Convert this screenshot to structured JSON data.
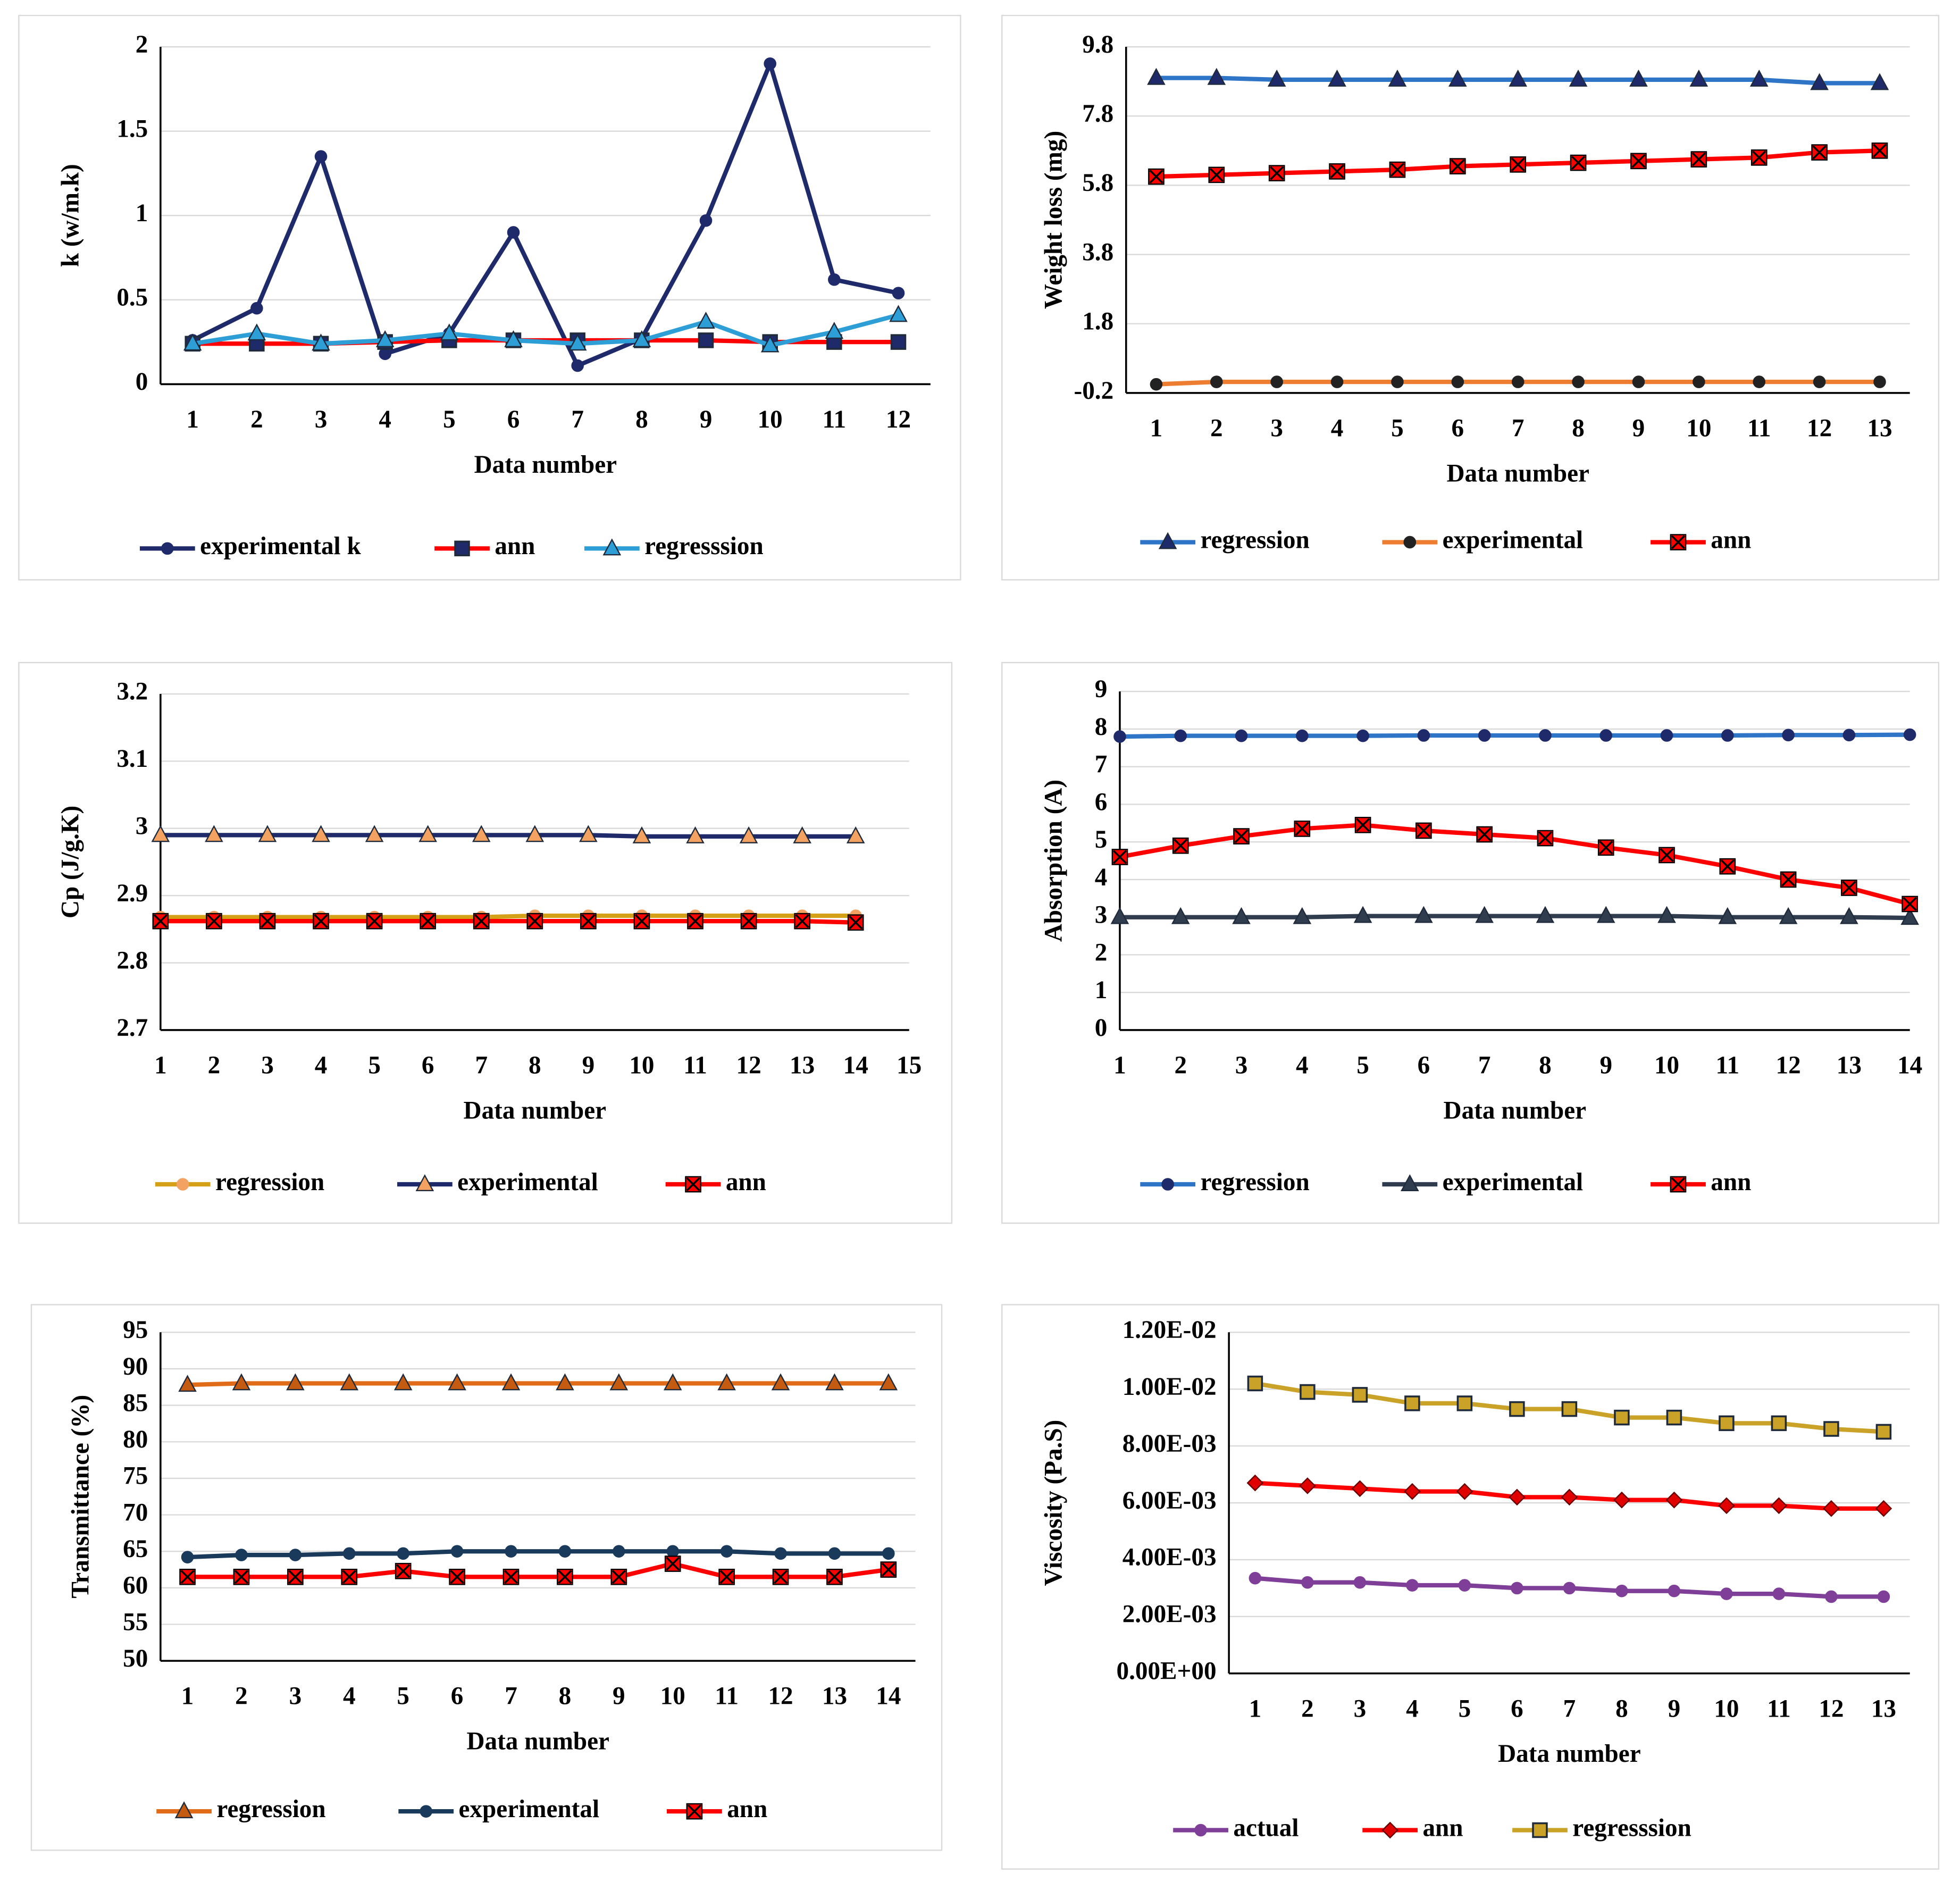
{
  "chart_data": [
    {
      "type": "line",
      "y_label": "k (w/m.k)",
      "x_label": "Data number",
      "categories": [
        "1",
        "2",
        "3",
        "4",
        "5",
        "6",
        "7",
        "8",
        "9",
        "10",
        "11",
        "12"
      ],
      "ylim": [
        0,
        2
      ],
      "yticks": [
        0,
        0.5,
        1,
        1.5,
        2
      ],
      "grid": true,
      "legend": "bottom",
      "series": [
        {
          "name": "experimental k",
          "color": "#1f2a6b",
          "marker": "circle",
          "marker_color": "#1f2a6b",
          "values": [
            0.26,
            0.45,
            1.35,
            0.18,
            0.3,
            0.9,
            0.11,
            0.27,
            0.97,
            1.9,
            0.62,
            0.54
          ]
        },
        {
          "name": "ann",
          "color": "#ff0000",
          "marker": "square",
          "marker_color": "#1f2a6b",
          "values": [
            0.24,
            0.24,
            0.24,
            0.25,
            0.26,
            0.26,
            0.26,
            0.26,
            0.26,
            0.25,
            0.25,
            0.25
          ]
        },
        {
          "name": "regresssion",
          "color": "#2e9fd6",
          "marker": "triangle",
          "marker_color": "#2e9fd6",
          "values": [
            0.24,
            0.3,
            0.24,
            0.26,
            0.3,
            0.26,
            0.24,
            0.26,
            0.37,
            0.23,
            0.31,
            0.41
          ]
        }
      ]
    },
    {
      "type": "line",
      "y_label": "Weight  loss (mg)",
      "x_label": "Data number",
      "categories": [
        "1",
        "2",
        "3",
        "4",
        "5",
        "6",
        "7",
        "8",
        "9",
        "10",
        "11",
        "12",
        "13"
      ],
      "ylim": [
        -0.2,
        9.8
      ],
      "yticks": [
        -0.2,
        1.8,
        3.8,
        5.8,
        7.8,
        9.8
      ],
      "grid": true,
      "legend": "bottom",
      "series": [
        {
          "name": "regression",
          "color": "#2e75c7",
          "marker": "triangle",
          "marker_color": "#1f2a6b",
          "values": [
            8.9,
            8.9,
            8.85,
            8.85,
            8.85,
            8.85,
            8.85,
            8.85,
            8.85,
            8.85,
            8.85,
            8.75,
            8.75
          ]
        },
        {
          "name": "experimental",
          "color": "#ed7d31",
          "marker": "circle",
          "marker_color": "#222222",
          "values": [
            0.05,
            0.12,
            0.12,
            0.12,
            0.12,
            0.12,
            0.12,
            0.12,
            0.12,
            0.12,
            0.12,
            0.12,
            0.12
          ]
        },
        {
          "name": "ann",
          "color": "#ff0000",
          "marker": "xsquare",
          "marker_color": "#ff0000",
          "values": [
            6.05,
            6.1,
            6.15,
            6.2,
            6.25,
            6.35,
            6.4,
            6.45,
            6.5,
            6.55,
            6.6,
            6.75,
            6.8
          ]
        }
      ]
    },
    {
      "type": "line",
      "y_label": "Cp (J/g.K)",
      "x_label": "Data number",
      "categories": [
        "1",
        "2",
        "3",
        "4",
        "5",
        "6",
        "7",
        "8",
        "9",
        "10",
        "11",
        "12",
        "13",
        "14",
        "15"
      ],
      "ylim": [
        2.7,
        3.2
      ],
      "yticks": [
        2.7,
        2.8,
        2.9,
        3,
        3.1,
        3.2
      ],
      "grid": true,
      "legend": "bottom",
      "series": [
        {
          "name": "regression",
          "color": "#d4a017",
          "marker": "circle",
          "marker_color": "#f4a261",
          "values": [
            2.868,
            2.868,
            2.868,
            2.868,
            2.868,
            2.868,
            2.868,
            2.87,
            2.87,
            2.87,
            2.87,
            2.87,
            2.87,
            2.87,
            null
          ]
        },
        {
          "name": "experimental",
          "color": "#1f2a6b",
          "marker": "triangle",
          "marker_color": "#f4a261",
          "values": [
            2.99,
            2.99,
            2.99,
            2.99,
            2.99,
            2.99,
            2.99,
            2.99,
            2.99,
            2.988,
            2.988,
            2.988,
            2.988,
            2.988,
            null
          ]
        },
        {
          "name": "ann",
          "color": "#ff0000",
          "marker": "xsquare",
          "marker_color": "#ff0000",
          "values": [
            2.862,
            2.862,
            2.862,
            2.862,
            2.862,
            2.862,
            2.862,
            2.862,
            2.862,
            2.862,
            2.862,
            2.862,
            2.862,
            2.86,
            null
          ]
        }
      ]
    },
    {
      "type": "line",
      "y_label": "Absorption  (A)",
      "x_label": "Data number",
      "categories": [
        "1",
        "2",
        "3",
        "4",
        "5",
        "6",
        "7",
        "8",
        "9",
        "10",
        "11",
        "12",
        "13",
        "14"
      ],
      "ylim": [
        0,
        9
      ],
      "yticks": [
        0,
        1,
        2,
        3,
        4,
        5,
        6,
        7,
        8,
        9
      ],
      "grid": true,
      "legend": "bottom",
      "series": [
        {
          "name": "regression",
          "color": "#2e75c7",
          "marker": "circle",
          "marker_color": "#1f2a6b",
          "values": [
            7.8,
            7.82,
            7.82,
            7.82,
            7.82,
            7.83,
            7.83,
            7.83,
            7.83,
            7.83,
            7.83,
            7.84,
            7.84,
            7.85
          ]
        },
        {
          "name": "experimental",
          "color": "#2f3d4f",
          "marker": "triangle",
          "marker_color": "#2f3d4f",
          "values": [
            3.0,
            3.0,
            3.0,
            3.0,
            3.03,
            3.03,
            3.03,
            3.03,
            3.03,
            3.03,
            3.0,
            3.0,
            3.0,
            2.98
          ]
        },
        {
          "name": "ann",
          "color": "#ff0000",
          "marker": "xsquare",
          "marker_color": "#ff0000",
          "values": [
            4.6,
            4.9,
            5.15,
            5.35,
            5.45,
            5.3,
            5.2,
            5.1,
            4.85,
            4.65,
            4.35,
            4.0,
            3.78,
            3.35
          ]
        }
      ]
    },
    {
      "type": "line",
      "y_label": "Transmittance  (%)",
      "x_label": "Data number",
      "categories": [
        "1",
        "2",
        "3",
        "4",
        "5",
        "6",
        "7",
        "8",
        "9",
        "10",
        "11",
        "12",
        "13",
        "14"
      ],
      "ylim": [
        50,
        95
      ],
      "yticks": [
        50,
        55,
        60,
        65,
        70,
        75,
        80,
        85,
        90,
        95
      ],
      "grid": true,
      "legend": "bottom",
      "series": [
        {
          "name": "regression",
          "color": "#e06c1a",
          "marker": "triangle",
          "marker_color": "#c55a11",
          "values": [
            87.8,
            88,
            88,
            88,
            88,
            88,
            88,
            88,
            88,
            88,
            88,
            88,
            88,
            88
          ]
        },
        {
          "name": "experimental",
          "color": "#1a3a5c",
          "marker": "circle",
          "marker_color": "#1a3a5c",
          "values": [
            64.2,
            64.5,
            64.5,
            64.7,
            64.7,
            65,
            65,
            65,
            65,
            65,
            65,
            64.7,
            64.7,
            64.7
          ]
        },
        {
          "name": "ann",
          "color": "#ff0000",
          "marker": "xsquare",
          "marker_color": "#ff0000",
          "values": [
            61.5,
            61.5,
            61.5,
            61.5,
            62.3,
            61.5,
            61.5,
            61.5,
            61.5,
            63.3,
            61.5,
            61.5,
            61.5,
            62.5
          ]
        }
      ]
    },
    {
      "type": "line",
      "y_label": "Viscosity (Pa.S)",
      "x_label": "Data number",
      "categories": [
        "1",
        "2",
        "3",
        "4",
        "5",
        "6",
        "7",
        "8",
        "9",
        "10",
        "11",
        "12",
        "13"
      ],
      "ylim": [
        0,
        0.012
      ],
      "yticks": [
        {
          "value": 0,
          "label": "0.00E+00"
        },
        {
          "value": 0.002,
          "label": "2.00E-03"
        },
        {
          "value": 0.004,
          "label": "4.00E-03"
        },
        {
          "value": 0.006,
          "label": "6.00E-03"
        },
        {
          "value": 0.008,
          "label": "8.00E-03"
        },
        {
          "value": 0.01,
          "label": "1.00E-02"
        },
        {
          "value": 0.012,
          "label": "1.20E-02"
        }
      ],
      "grid": true,
      "legend": "bottom",
      "series": [
        {
          "name": "actual",
          "color": "#7f3f98",
          "marker": "circle",
          "marker_color": "#7f3f98",
          "values": [
            0.00335,
            0.0032,
            0.0032,
            0.0031,
            0.0031,
            0.003,
            0.003,
            0.0029,
            0.0029,
            0.0028,
            0.0028,
            0.0027,
            0.0027
          ]
        },
        {
          "name": "ann",
          "color": "#ff0000",
          "marker": "diamond",
          "marker_color": "#e00000",
          "values": [
            0.0067,
            0.0066,
            0.0065,
            0.0064,
            0.0064,
            0.0062,
            0.0062,
            0.0061,
            0.0061,
            0.0059,
            0.0059,
            0.0058,
            0.0058
          ]
        },
        {
          "name": "regresssion",
          "color": "#c9a227",
          "marker": "square",
          "marker_color": "#c9a227",
          "values": [
            0.0102,
            0.0099,
            0.0098,
            0.0095,
            0.0095,
            0.0093,
            0.0093,
            0.009,
            0.009,
            0.0088,
            0.0088,
            0.0086,
            0.0085
          ]
        }
      ]
    }
  ]
}
